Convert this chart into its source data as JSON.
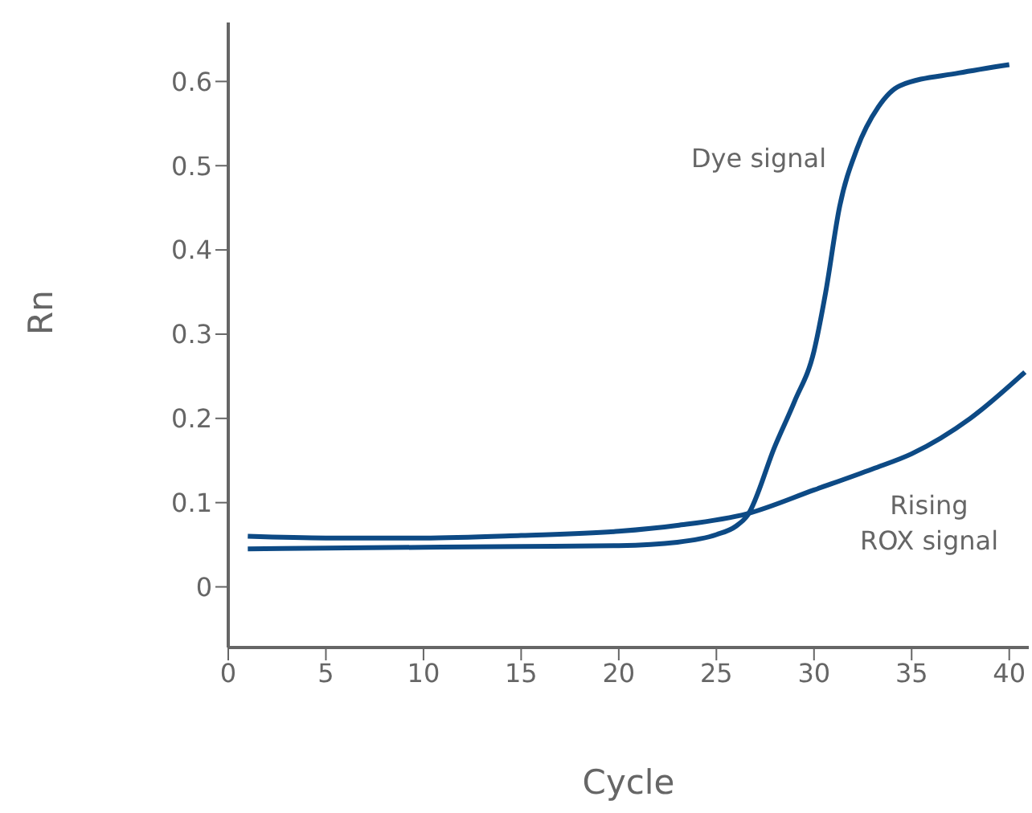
{
  "chart_data": {
    "type": "line",
    "xlabel": "Cycle",
    "ylabel": "Rn",
    "xlim": [
      0,
      41
    ],
    "xticks": [
      0,
      5,
      10,
      15,
      20,
      25,
      30,
      35,
      40
    ],
    "ylim": [
      -0.072,
      0.67
    ],
    "yticks": [
      0,
      0.1,
      0.2,
      0.3,
      0.4,
      0.5,
      0.6
    ],
    "grid": false,
    "legend": false,
    "marker": "none",
    "line_style": "solid",
    "series": [
      {
        "name": "Dye signal",
        "color": "#0d4a85",
        "x": [
          1,
          5,
          10,
          15,
          20,
          23,
          25,
          26,
          26.6,
          28,
          29,
          30,
          30.6,
          31.3,
          32.2,
          33.3,
          34.4,
          37.4,
          40
        ],
        "values": [
          0.045,
          0.046,
          0.047,
          0.048,
          0.049,
          0.053,
          0.062,
          0.072,
          0.085,
          0.167,
          0.22,
          0.28,
          0.35,
          0.45,
          0.52,
          0.57,
          0.595,
          0.61,
          0.62
        ]
      },
      {
        "name": "Rising ROX signal",
        "color": "#0d4a85",
        "x": [
          1,
          5,
          10,
          15,
          20,
          23,
          26.6,
          30,
          33,
          35,
          38,
          40.8
        ],
        "values": [
          0.06,
          0.058,
          0.058,
          0.061,
          0.066,
          0.073,
          0.087,
          0.115,
          0.14,
          0.158,
          0.2,
          0.255
        ]
      }
    ]
  }
}
